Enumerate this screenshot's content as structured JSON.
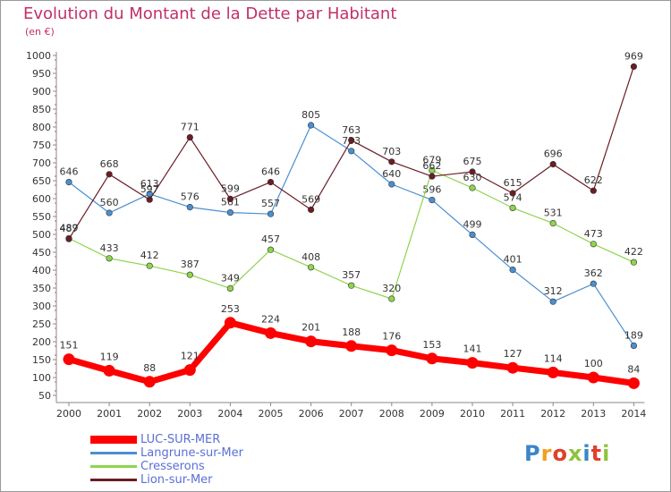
{
  "title": "Evolution du Montant de la Dette par Habitant",
  "unit": "(en €)",
  "logo": "Proxiti",
  "chart_data": {
    "type": "line",
    "categories": [
      "2000",
      "2001",
      "2002",
      "2003",
      "2004",
      "2005",
      "2006",
      "2007",
      "2008",
      "2009",
      "2010",
      "2011",
      "2012",
      "2013",
      "2014"
    ],
    "ylim": [
      50,
      1000
    ],
    "yticks": [
      50,
      100,
      150,
      200,
      250,
      300,
      350,
      400,
      450,
      500,
      550,
      600,
      650,
      700,
      750,
      800,
      850,
      900,
      950,
      1000
    ],
    "grid": false,
    "legend_position": "bottom-left",
    "series": [
      {
        "name": "LUC-SUR-MER",
        "color": "#ff0000",
        "values": [
          151,
          119,
          88,
          121,
          253,
          224,
          201,
          188,
          176,
          153,
          141,
          127,
          114,
          100,
          84
        ]
      },
      {
        "name": "Langrune-sur-Mer",
        "color": "#4a8fd0",
        "values": [
          646,
          560,
          613,
          576,
          561,
          557,
          805,
          733,
          640,
          596,
          499,
          401,
          312,
          362,
          189
        ]
      },
      {
        "name": "Cresserons",
        "color": "#8fd44e",
        "values": [
          489,
          433,
          412,
          387,
          349,
          457,
          408,
          357,
          320,
          679,
          630,
          574,
          531,
          473,
          422
        ]
      },
      {
        "name": "Lion-sur-Mer",
        "color": "#6b1c25",
        "values": [
          487,
          668,
          597,
          771,
          599,
          646,
          569,
          763,
          703,
          662,
          675,
          615,
          696,
          622,
          969
        ]
      }
    ]
  }
}
